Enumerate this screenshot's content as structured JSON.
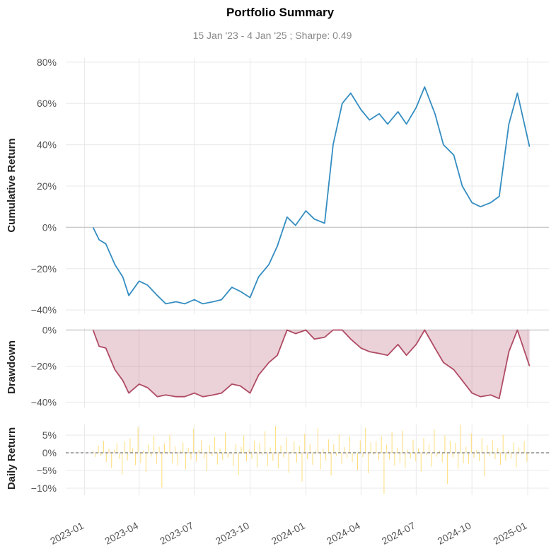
{
  "title": "Portfolio Summary",
  "subtitle": "15 Jan '23 -  4 Jan '25 ;  Sharpe: 0.49",
  "colors": {
    "cumulative": "#348dc1",
    "drawdown": "#af4b64",
    "drawdown_fill": "#af4b64",
    "daily": "#fedd78",
    "zero_line": "#cccccc",
    "grid": "#e8e8e8"
  },
  "chart_data": [
    {
      "type": "line",
      "panel": "cumulative",
      "ylabel": "Cumulative Return",
      "ylim": [
        -42,
        82
      ],
      "yticks": [
        "80%",
        "60%",
        "40%",
        "20%",
        "0%",
        "−20%",
        "−40%"
      ],
      "ytick_values": [
        80,
        60,
        40,
        20,
        0,
        -20,
        -40
      ],
      "grid": true,
      "series": [
        {
          "x": [
            "2023-01-15",
            "2023-01-25",
            "2023-02-05",
            "2023-02-20",
            "2023-03-05",
            "2023-03-15",
            "2023-04-01",
            "2023-04-15",
            "2023-05-01",
            "2023-05-15",
            "2023-06-01",
            "2023-06-15",
            "2023-07-01",
            "2023-07-15",
            "2023-08-01",
            "2023-08-15",
            "2023-09-01",
            "2023-09-15",
            "2023-10-01",
            "2023-10-15",
            "2023-11-01",
            "2023-11-15",
            "2023-12-01",
            "2023-12-15",
            "2024-01-01",
            "2024-01-15",
            "2024-02-01",
            "2024-02-15",
            "2024-03-01",
            "2024-03-15",
            "2024-04-01",
            "2024-04-15",
            "2024-05-01",
            "2024-05-15",
            "2024-06-01",
            "2024-06-15",
            "2024-07-01",
            "2024-07-15",
            "2024-08-01",
            "2024-08-15",
            "2024-09-01",
            "2024-09-15",
            "2024-10-01",
            "2024-10-15",
            "2024-11-01",
            "2024-11-15",
            "2024-12-01",
            "2024-12-15",
            "2025-01-04"
          ],
          "values": [
            0,
            -6,
            -8,
            -18,
            -24,
            -33,
            -26,
            -28,
            -33,
            -37,
            -36,
            -37,
            -35,
            -37,
            -36,
            -35,
            -29,
            -31,
            -34,
            -24,
            -18,
            -9,
            5,
            1,
            8,
            4,
            2,
            40,
            60,
            65,
            57,
            52,
            55,
            50,
            56,
            50,
            58,
            68,
            55,
            40,
            35,
            20,
            12,
            10,
            12,
            15,
            50,
            65,
            39
          ]
        }
      ]
    },
    {
      "type": "area",
      "panel": "drawdown",
      "ylabel": "Drawdown",
      "ylim": [
        -43,
        1
      ],
      "yticks": [
        "0%",
        "−20%",
        "−40%"
      ],
      "ytick_values": [
        0,
        -20,
        -40
      ],
      "grid": true,
      "series": [
        {
          "x": [
            "2023-01-15",
            "2023-01-25",
            "2023-02-05",
            "2023-02-20",
            "2023-03-05",
            "2023-03-15",
            "2023-04-01",
            "2023-04-15",
            "2023-05-01",
            "2023-05-15",
            "2023-06-01",
            "2023-06-15",
            "2023-07-01",
            "2023-07-15",
            "2023-08-01",
            "2023-08-15",
            "2023-09-01",
            "2023-09-15",
            "2023-10-01",
            "2023-10-15",
            "2023-11-01",
            "2023-11-15",
            "2023-12-01",
            "2023-12-15",
            "2024-01-01",
            "2024-01-15",
            "2024-02-01",
            "2024-02-15",
            "2024-03-01",
            "2024-03-15",
            "2024-04-01",
            "2024-04-15",
            "2024-05-01",
            "2024-05-15",
            "2024-06-01",
            "2024-06-15",
            "2024-07-01",
            "2024-07-15",
            "2024-08-01",
            "2024-08-15",
            "2024-09-01",
            "2024-09-15",
            "2024-10-01",
            "2024-10-15",
            "2024-11-01",
            "2024-11-15",
            "2024-12-01",
            "2024-12-15",
            "2025-01-04"
          ],
          "values": [
            0,
            -9,
            -10,
            -22,
            -28,
            -35,
            -30,
            -32,
            -37,
            -36,
            -37,
            -37,
            -35,
            -37,
            -36,
            -35,
            -30,
            -31,
            -35,
            -25,
            -18,
            -14,
            0,
            -2,
            0,
            -5,
            -4,
            0,
            0,
            -5,
            -10,
            -12,
            -13,
            -14,
            -8,
            -14,
            -8,
            0,
            -10,
            -18,
            -22,
            -28,
            -35,
            -37,
            -36,
            -38,
            -12,
            0,
            -20
          ]
        }
      ]
    },
    {
      "type": "bar",
      "panel": "daily",
      "ylabel": "Daily Return",
      "ylim": [
        -12,
        8
      ],
      "yticks": [
        "5%",
        "0%",
        "−5%",
        "−10%"
      ],
      "ytick_values": [
        5,
        0,
        -5,
        -10
      ],
      "grid": true,
      "reference_line": 0,
      "series": [
        {
          "x_start": "2023-01-15",
          "x_end": "2025-01-04",
          "values": [
            0.5,
            -1.2,
            2.1,
            -0.8,
            3.4,
            -2.6,
            1.1,
            -4.3,
            0.9,
            2.7,
            -1.8,
            -6.1,
            3.2,
            -2.2,
            4.1,
            1.3,
            -3.5,
            7.2,
            -2.8,
            0.6,
            -5.4,
            2.3,
            -1.1,
            4.8,
            -3.1,
            1.7,
            -9.8,
            2.6,
            -0.4,
            5.1,
            -2.9,
            1.8,
            -3.6,
            0.7,
            2.9,
            -4.7,
            1.4,
            -1.9,
            6.8,
            -2.5,
            0.8,
            3.6,
            -1.6,
            -5.2,
            2.2,
            -0.9,
            4.4,
            -3.3,
            1.2,
            -2.1,
            5.7,
            -1.4,
            0.3,
            -3.8,
            2.5,
            -6.2,
            1.6,
            4.9,
            -2.4,
            0.9,
            -1.7,
            3.3,
            -4.1,
            2.8,
            -0.6,
            6.1,
            -3.7,
            1.5,
            -2.3,
            7.6,
            -4.4,
            2.1,
            -1.3,
            4.3,
            -5.6,
            0.4,
            3.1,
            -2.7,
            1.9,
            -8.1,
            5.4,
            -1.8,
            2.6,
            -3.4,
            0.7,
            6.9,
            -4.6,
            1.1,
            -2.2,
            3.8,
            -6.4,
            2.4,
            -0.8,
            5.2,
            -3.2,
            1.6,
            -1.5,
            4.6,
            -2.6,
            0.2,
            -4.9,
            3.5,
            -1.2,
            7.1,
            -5.8,
            2.9,
            -0.5,
            3.2,
            -2.1,
            4.7,
            -11.6,
            2.3,
            -1.9,
            5.8,
            -3.6,
            1.4,
            -2.8,
            6.3,
            -4.2,
            0.9,
            -1.6,
            3.7,
            -2.4,
            1.2,
            -5.3,
            4.1,
            -0.7,
            2.5,
            -3.9,
            6.6,
            -1.1,
            0.6,
            -2.7,
            4.9,
            -8.8,
            3.4,
            -1.3,
            2.8,
            -4.5,
            7.9,
            -2.9,
            1.7,
            -3.1,
            5.5,
            -1.4,
            0.8,
            -2.3,
            4.2,
            -6.7,
            2.2,
            -0.9,
            3.6,
            -1.8,
            1.3,
            -3.4,
            5.1,
            -2.2,
            0.7,
            -1.6,
            2.9,
            -4.1,
            1.5,
            -0.4,
            3.3,
            -2.5,
            0.2
          ]
        }
      ]
    }
  ],
  "x_axis": {
    "ticks": [
      "2023-01",
      "2023-04",
      "2023-07",
      "2023-10",
      "2024-01",
      "2024-04",
      "2024-07",
      "2024-10",
      "2025-01"
    ]
  }
}
